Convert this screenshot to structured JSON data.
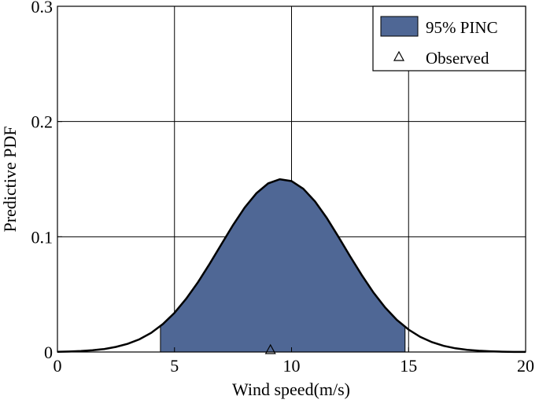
{
  "chart_data": {
    "type": "area",
    "title": "",
    "xlabel": "Wind speed(m/s)",
    "ylabel": "Predictive PDF",
    "xlim": [
      0,
      20
    ],
    "ylim": [
      0,
      0.3
    ],
    "xticks": [
      0,
      5,
      10,
      15,
      20
    ],
    "xtick_labels": [
      "0",
      "5",
      "10",
      "15",
      "20"
    ],
    "yticks": [
      0,
      0.1,
      0.2,
      0.3
    ],
    "ytick_labels": [
      "0",
      "0.1",
      "0.2",
      "0.3"
    ],
    "grid": true,
    "legend_position": "top-right",
    "legend": [
      {
        "label": "95% PINC",
        "type": "patch"
      },
      {
        "label": "Observed",
        "type": "marker-triangle"
      }
    ],
    "fill_color": "#4f6795",
    "interval": {
      "lower": 4.4,
      "upper": 14.85
    },
    "observed": {
      "x": 9.1,
      "y": 0
    },
    "pdf": {
      "x": [
        0,
        0.5,
        1,
        1.5,
        2,
        2.5,
        3,
        3.5,
        4,
        4.5,
        5,
        5.5,
        6,
        6.5,
        7,
        7.5,
        8,
        8.5,
        9,
        9.5,
        10,
        10.5,
        11,
        11.5,
        12,
        12.5,
        13,
        13.5,
        14,
        14.5,
        15,
        15.5,
        16,
        16.5,
        17,
        17.5,
        18,
        18.5,
        19,
        19.5,
        20
      ],
      "y": [
        0.0002,
        0.0004,
        0.0008,
        0.0015,
        0.0026,
        0.0044,
        0.0071,
        0.011,
        0.0166,
        0.0242,
        0.034,
        0.0462,
        0.0605,
        0.0765,
        0.0934,
        0.1101,
        0.1254,
        0.1378,
        0.1463,
        0.1499,
        0.1483,
        0.1417,
        0.1307,
        0.1165,
        0.1001,
        0.0831,
        0.0667,
        0.0516,
        0.0386,
        0.0278,
        0.0194,
        0.0131,
        0.0085,
        0.0053,
        0.0032,
        0.0019,
        0.0011,
        0.0006,
        0.0003,
        0.0001,
        0.0001
      ]
    }
  }
}
